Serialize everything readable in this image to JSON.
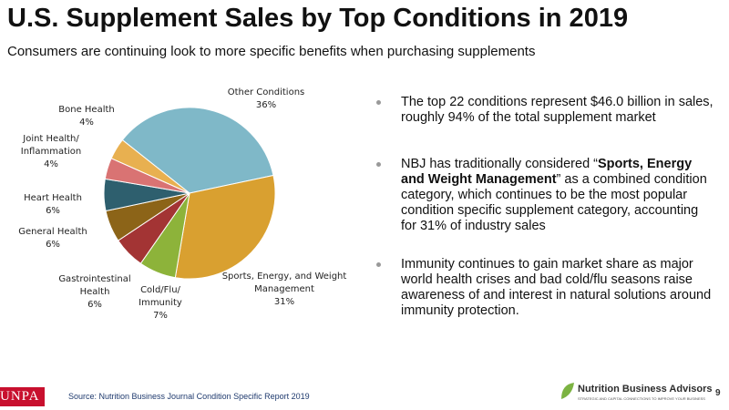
{
  "chart_data": {
    "type": "pie",
    "title": "U.S. Supplement Sales by Top Conditions in 2019",
    "subtitle": "Consumers are continuing look to more specific benefits when purchasing supplements",
    "categories": [
      "Other Conditions",
      "Sports, Energy, and Weight Management",
      "Cold/Flu/ Immunity",
      "Gastrointestinal Health",
      "General Health",
      "Heart Health",
      "Joint Health/ Inflammation",
      "Bone Health"
    ],
    "values": [
      36,
      31,
      7,
      6,
      6,
      6,
      4,
      4
    ],
    "value_labels": [
      "36%",
      "31%",
      "7%",
      "6%",
      "6%",
      "6%",
      "4%",
      "4%"
    ],
    "colors": [
      "#7fb8c8",
      "#d9a030",
      "#8db33a",
      "#a33434",
      "#8c6418",
      "#2e5f6e",
      "#d97373",
      "#e8b050"
    ]
  },
  "bullets": [
    {
      "text": "The top 22 conditions represent $46.0 billion in sales, roughly 94% of the total supplement market"
    },
    {
      "before": "NBJ has traditionally considered “",
      "bold": "Sports, Energy and Weight Management",
      "after": "” as a combined condition category, which continues to be the most popular condition specific supplement category, accounting for 31% of industry sales"
    },
    {
      "text": "Immunity continues to gain market share as major world health crises and bad cold/flu seasons raise awareness of and interest in natural solutions around immunity protection."
    }
  ],
  "footer": {
    "org": "UNPA",
    "source": "Source: Nutrition Business Journal Condition Specific Report 2019",
    "logo_name": "Nutrition Business Advisors",
    "logo_tagline": "STRATEGIC AND CAPITAL CONNECTIONS TO IMPROVE YOUR BUSINESS",
    "page": "9"
  }
}
